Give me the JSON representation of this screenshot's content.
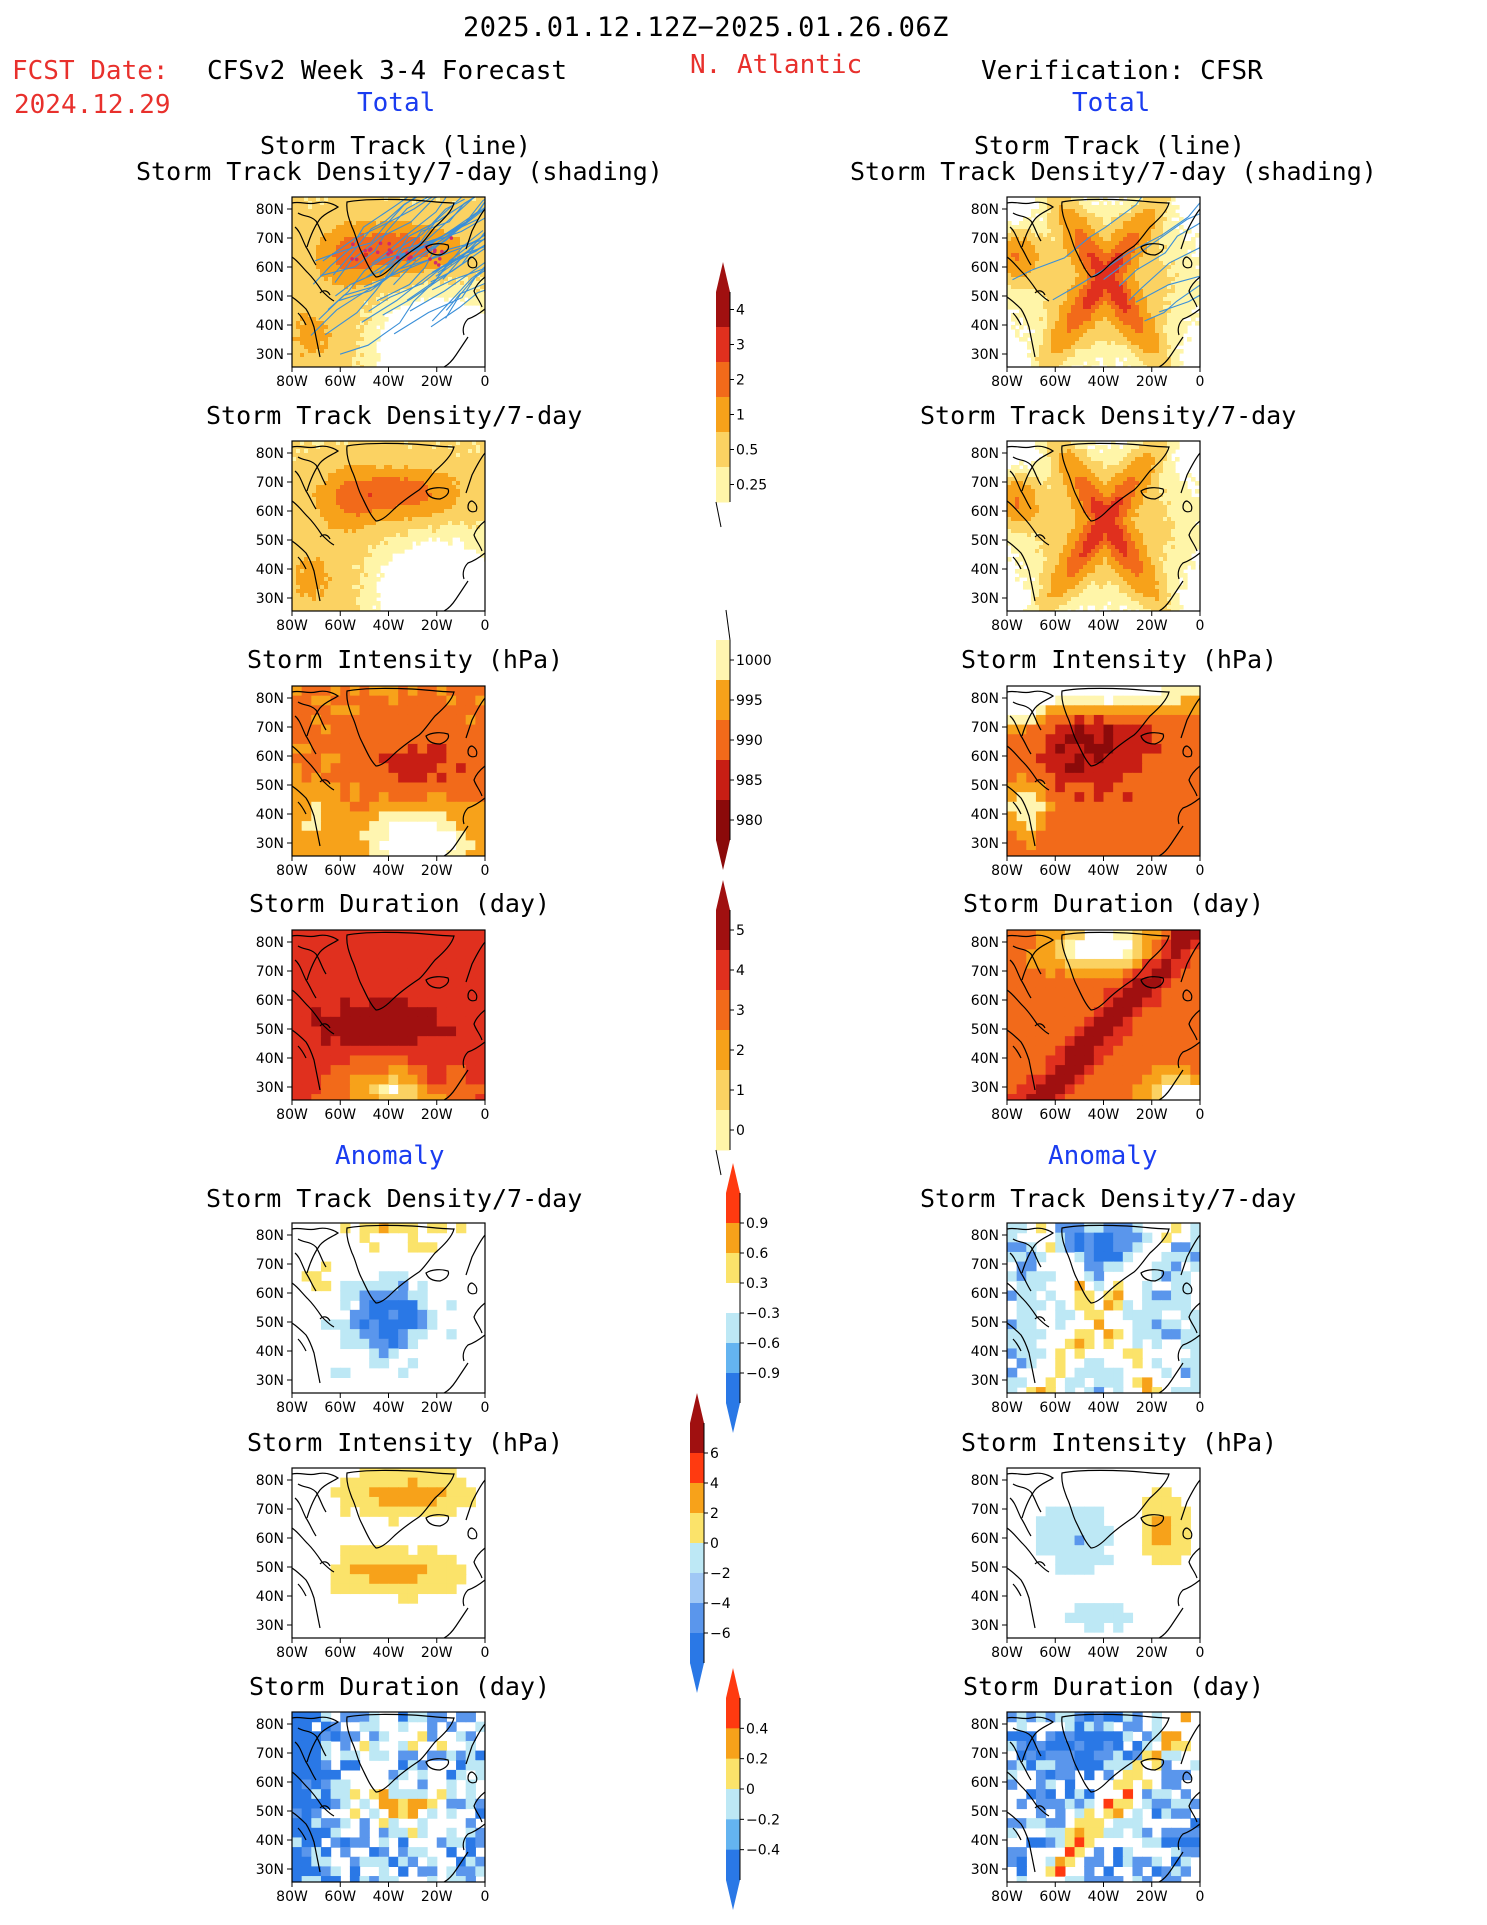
{
  "header": {
    "period": "2025.01.12.12Z−2025.01.26.06Z",
    "fcst_label": "FCST Date:",
    "fcst_date": "2024.12.29",
    "left_title": "CFSv2 Week 3-4 Forecast",
    "region": "N. Atlantic",
    "right_title": "Verification: CFSR"
  },
  "sections": {
    "total": "Total",
    "anomaly": "Anomaly"
  },
  "panel_titles": {
    "track_line": "Storm Track (line)",
    "track_shading": "Storm Track Density/7-day (shading)",
    "density": "Storm Track Density/7-day",
    "intensity": "Storm Intensity (hPa)",
    "duration": "Storm Duration (day)"
  },
  "axes": {
    "lat_ticks": [
      "80N",
      "70N",
      "60N",
      "50N",
      "40N",
      "30N"
    ],
    "lon_ticks": [
      "80W",
      "60W",
      "40W",
      "20W",
      "0"
    ]
  },
  "colorbars": [
    {
      "name": "density-total",
      "labels": [
        "4",
        "3",
        "2",
        "1",
        "0.5",
        "0.25"
      ],
      "colors": [
        "#a01010",
        "#e0301e",
        "#f26a1a",
        "#f7a21a",
        "#fbd262",
        "#fff5a8"
      ]
    },
    {
      "name": "intensity-total",
      "labels": [
        "1000",
        "995",
        "990",
        "985",
        "980"
      ],
      "colors": [
        "#fff5b0",
        "#f7a21a",
        "#f26a1a",
        "#c81e14",
        "#8b0a0a"
      ]
    },
    {
      "name": "duration-total",
      "labels": [
        "5",
        "4",
        "3",
        "2",
        "1",
        "0"
      ],
      "colors": [
        "#a01010",
        "#e0301e",
        "#f26a1a",
        "#f7a21a",
        "#fbd262",
        "#fff5a8"
      ]
    },
    {
      "name": "density-anomaly",
      "labels": [
        "0.9",
        "0.6",
        "0.3",
        "−0.3",
        "−0.6",
        "−0.9"
      ],
      "colors": [
        "#ff3a10",
        "#f7a21a",
        "#fbe36a",
        "#ffffff",
        "#bde8f5",
        "#64b4f0",
        "#2a78e6"
      ]
    },
    {
      "name": "intensity-anomaly",
      "labels": [
        "6",
        "4",
        "2",
        "0",
        "−2",
        "−4",
        "−6"
      ],
      "colors": [
        "#a01010",
        "#ff3a10",
        "#f7a21a",
        "#fbe36a",
        "#bde8f5",
        "#a0c8f5",
        "#5a96ec",
        "#2a78e6"
      ]
    },
    {
      "name": "duration-anomaly",
      "labels": [
        "0.4",
        "0.2",
        "0",
        "−0.2",
        "−0.4"
      ],
      "colors": [
        "#ff3a10",
        "#f7a21a",
        "#fbe36a",
        "#bde8f5",
        "#64b4f0",
        "#2a78e6"
      ]
    }
  ]
}
